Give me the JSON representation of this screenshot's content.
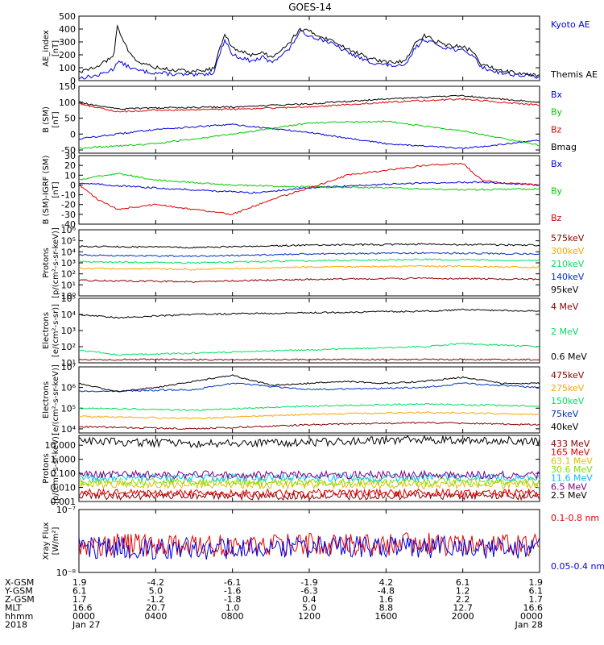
{
  "title": "GOES-14",
  "colors": {
    "black": "#000000",
    "blue": "#0000e0",
    "red": "#e00000",
    "green": "#00cc00",
    "orange": "#ffa500",
    "darkred": "#8b0000",
    "dark_blue": "#0030c0",
    "spring_green": "#00e060",
    "cyan": "#00c0ff",
    "gold": "#e0c000",
    "lime": "#80e000",
    "purple": "#800080"
  },
  "chart_data": [
    {
      "id": "ae",
      "type": "line",
      "ylabel": [
        "AE_index",
        "[nT]"
      ],
      "ylim": [
        0,
        500
      ],
      "yticks": [
        "0",
        "100",
        "200",
        "300",
        "400",
        "500"
      ],
      "ytick_values": [
        0,
        100,
        200,
        300,
        400,
        500
      ],
      "log": false,
      "series": [
        {
          "name": "Kyoto AE",
          "color": "#0000e0",
          "x": [
            0,
            1,
            1.8,
            2,
            3,
            4,
            5,
            6,
            7,
            7.6,
            8,
            9,
            9.6,
            10,
            11,
            11.5,
            12,
            13,
            14,
            15,
            16,
            17,
            17.5,
            18,
            19,
            20,
            20.5,
            21,
            22,
            23,
            24
          ],
          "y": [
            20,
            40,
            90,
            150,
            80,
            60,
            50,
            40,
            60,
            320,
            200,
            150,
            180,
            140,
            250,
            380,
            350,
            300,
            220,
            150,
            120,
            110,
            250,
            320,
            260,
            230,
            200,
            100,
            60,
            40,
            30
          ]
        },
        {
          "name": "Themis AE",
          "color": "#000000",
          "x": [
            0,
            1,
            1.8,
            2,
            2.5,
            3,
            4,
            5,
            6,
            7,
            7.6,
            8,
            9,
            9.6,
            10,
            11,
            11.5,
            12,
            13,
            14,
            15,
            16,
            17,
            17.5,
            18,
            19,
            20,
            20.5,
            21,
            22,
            23,
            24
          ],
          "y": [
            60,
            120,
            180,
            420,
            250,
            150,
            100,
            80,
            70,
            90,
            360,
            250,
            200,
            220,
            180,
            300,
            400,
            380,
            320,
            250,
            180,
            140,
            150,
            280,
            350,
            280,
            260,
            230,
            120,
            80,
            60,
            40
          ]
        }
      ]
    },
    {
      "id": "b",
      "type": "line",
      "ylabel": [
        "B (SM)",
        "[nT]"
      ],
      "ylim": [
        -60,
        150
      ],
      "yticks": [
        "-50",
        "0",
        "50",
        "100",
        "150"
      ],
      "ytick_values": [
        -50,
        0,
        50,
        100,
        150
      ],
      "log": false,
      "series": [
        {
          "name": "Bx",
          "color": "#0000e0",
          "x": [
            0,
            4,
            8,
            12,
            16,
            20,
            24
          ],
          "y": [
            -15,
            15,
            30,
            5,
            -30,
            -45,
            -20
          ]
        },
        {
          "name": "By",
          "color": "#00cc00",
          "x": [
            0,
            4,
            8,
            12,
            16,
            20,
            24
          ],
          "y": [
            -45,
            -30,
            0,
            35,
            40,
            10,
            -35
          ]
        },
        {
          "name": "Bz",
          "color": "#e00000",
          "x": [
            0,
            2,
            4,
            8,
            12,
            16,
            20,
            24
          ],
          "y": [
            95,
            70,
            75,
            78,
            85,
            100,
            110,
            90
          ]
        },
        {
          "name": "Bmag",
          "color": "#000000",
          "x": [
            0,
            2,
            4,
            8,
            12,
            16,
            20,
            24
          ],
          "y": [
            100,
            78,
            82,
            85,
            95,
            110,
            120,
            100
          ]
        }
      ]
    },
    {
      "id": "bigrf",
      "type": "line",
      "ylabel": [
        "B (SM)-IGRF (SM)",
        "[nT]"
      ],
      "ylim": [
        -40,
        30
      ],
      "yticks": [
        "-40",
        "-30",
        "-20",
        "-10",
        "0",
        "10",
        "20",
        "30"
      ],
      "ytick_values": [
        -40,
        -30,
        -20,
        -10,
        0,
        10,
        20,
        30
      ],
      "log": false,
      "series": [
        {
          "name": "Bx",
          "color": "#0000e0",
          "x": [
            0,
            3,
            6,
            9,
            12,
            15,
            18,
            21,
            24
          ],
          "y": [
            2,
            -2,
            -5,
            -8,
            -3,
            0,
            2,
            3,
            0
          ]
        },
        {
          "name": "By",
          "color": "#00cc00",
          "x": [
            0,
            2,
            4,
            8,
            12,
            16,
            20,
            24
          ],
          "y": [
            5,
            12,
            5,
            0,
            -2,
            -3,
            -5,
            -4
          ]
        },
        {
          "name": "Bz",
          "color": "#e00000",
          "x": [
            0,
            1,
            2,
            4,
            6,
            8,
            10,
            12,
            14,
            16,
            18,
            20,
            21,
            22,
            24
          ],
          "y": [
            0,
            -15,
            -25,
            -20,
            -25,
            -30,
            -15,
            -3,
            10,
            15,
            20,
            22,
            5,
            2,
            0
          ]
        }
      ]
    },
    {
      "id": "protons_lo",
      "type": "line",
      "ylabel": [
        "Protons",
        "[p/(cm²-s-sr-keV)]"
      ],
      "ylim_log": [
        0,
        6
      ],
      "yticks": [
        "10⁰",
        "10¹",
        "10²",
        "10³",
        "10⁴",
        "10⁵",
        "10⁶"
      ],
      "ytick_values": [
        0,
        1,
        2,
        3,
        4,
        5,
        6
      ],
      "log": true,
      "series": [
        {
          "name": "575keV",
          "color": "#8b0000",
          "x": [
            0,
            6,
            12,
            18,
            24
          ],
          "y": [
            1.4,
            1.3,
            1.5,
            1.6,
            1.5
          ]
        },
        {
          "name": "300keV",
          "color": "#ffa500",
          "x": [
            0,
            6,
            12,
            18,
            24
          ],
          "y": [
            2.5,
            2.4,
            2.6,
            2.7,
            2.6
          ]
        },
        {
          "name": "210keV",
          "color": "#00e060",
          "x": [
            0,
            6,
            12,
            18,
            24
          ],
          "y": [
            3.1,
            3.0,
            3.2,
            3.3,
            3.2
          ]
        },
        {
          "name": "140keV",
          "color": "#0030c0",
          "x": [
            0,
            6,
            12,
            18,
            24
          ],
          "y": [
            3.7,
            3.6,
            3.8,
            3.9,
            3.8
          ]
        },
        {
          "name": "95keV",
          "color": "#000000",
          "x": [
            0,
            6,
            12,
            18,
            24
          ],
          "y": [
            4.5,
            4.4,
            4.6,
            4.7,
            4.6
          ]
        }
      ]
    },
    {
      "id": "electrons_mev",
      "type": "line",
      "ylabel": [
        "Electrons",
        "[e/(cm²-s-sr)]"
      ],
      "ylim_log": [
        1,
        5
      ],
      "yticks": [
        "10¹",
        "10²",
        "10³",
        "10⁴",
        "10⁵"
      ],
      "ytick_values": [
        1,
        2,
        3,
        4,
        5
      ],
      "log": true,
      "series": [
        {
          "name": "4 MeV",
          "color": "#8b0000",
          "x": [
            0,
            6,
            12,
            18,
            24
          ],
          "y": [
            1.2,
            1.2,
            1.2,
            1.2,
            1.2
          ]
        },
        {
          "name": "2 MeV",
          "color": "#00e060",
          "x": [
            0,
            2,
            6,
            12,
            18,
            20,
            24
          ],
          "y": [
            1.8,
            1.5,
            1.6,
            1.8,
            2.0,
            2.2,
            2.0
          ]
        },
        {
          "name": "0.6 MeV",
          "color": "#000000",
          "x": [
            0,
            2,
            6,
            12,
            18,
            20,
            24
          ],
          "y": [
            4.0,
            3.8,
            4.0,
            4.1,
            4.2,
            4.3,
            4.2
          ]
        }
      ]
    },
    {
      "id": "electrons_kev",
      "type": "line",
      "ylabel": [
        "Electrons",
        "[e/(cm²-s-sr-keV)]"
      ],
      "ylim_log": [
        3.8,
        7
      ],
      "yticks": [
        "10⁴",
        "10⁵",
        "10⁶",
        "10⁷"
      ],
      "ytick_values": [
        4,
        5,
        6,
        7
      ],
      "log": true,
      "series": [
        {
          "name": "475keV",
          "color": "#8b0000",
          "x": [
            0,
            6,
            12,
            18,
            24
          ],
          "y": [
            4.1,
            4.0,
            4.2,
            4.3,
            4.2
          ]
        },
        {
          "name": "275keV",
          "color": "#ffa500",
          "x": [
            0,
            6,
            12,
            18,
            24
          ],
          "y": [
            4.6,
            4.5,
            4.7,
            4.8,
            4.7
          ]
        },
        {
          "name": "150keV",
          "color": "#00e060",
          "x": [
            0,
            6,
            12,
            18,
            24
          ],
          "y": [
            5.0,
            4.9,
            5.1,
            5.2,
            5.1
          ]
        },
        {
          "name": "75keV",
          "color": "#0030c0",
          "x": [
            0,
            6,
            8,
            12,
            18,
            20,
            24
          ],
          "y": [
            5.8,
            5.9,
            6.2,
            5.9,
            6.0,
            6.2,
            6.0
          ]
        },
        {
          "name": "40keV",
          "color": "#000000",
          "x": [
            0,
            2,
            4,
            8,
            10,
            12,
            14,
            16,
            18,
            20,
            22,
            24
          ],
          "y": [
            6.2,
            5.8,
            6.0,
            6.6,
            6.1,
            6.2,
            6.3,
            6.2,
            6.3,
            6.5,
            6.2,
            6.2
          ]
        }
      ]
    },
    {
      "id": "protons_hi",
      "type": "line",
      "ylabel": [
        "Protons",
        "[p/(cm²-s-sr-keV)]"
      ],
      "ylim_log": [
        -3,
        1.7
      ],
      "yticks": [
        "0.001",
        "0.010",
        "0.100",
        "1.000",
        "10.000"
      ],
      "ytick_values": [
        -3,
        -2,
        -1,
        0,
        1
      ],
      "log": true,
      "series": [
        {
          "name": "433 MeV",
          "color": "#8b0000",
          "x": [
            0,
            12,
            24
          ],
          "y": [
            -2.6,
            -2.6,
            -2.6
          ]
        },
        {
          "name": "165 MeV",
          "color": "#e00000",
          "x": [
            0,
            12,
            24
          ],
          "y": [
            -2.4,
            -2.4,
            -2.4
          ]
        },
        {
          "name": "63.1 MeV",
          "color": "#e0c000",
          "x": [
            0,
            12,
            24
          ],
          "y": [
            -1.8,
            -1.8,
            -1.8
          ]
        },
        {
          "name": "30.6 MeV",
          "color": "#80e000",
          "x": [
            0,
            12,
            24
          ],
          "y": [
            -1.6,
            -1.6,
            -1.6
          ]
        },
        {
          "name": "11.6 MeV",
          "color": "#00c0ff",
          "x": [
            0,
            12,
            24
          ],
          "y": [
            -1.3,
            -1.3,
            -1.3
          ]
        },
        {
          "name": "6.5 MeV",
          "color": "#800080",
          "x": [
            0,
            12,
            24
          ],
          "y": [
            -1.1,
            -1.1,
            -1.1
          ]
        },
        {
          "name": "2.5 MeV",
          "color": "#000000",
          "x": [
            0,
            6,
            12,
            18,
            24
          ],
          "y": [
            1.3,
            1.1,
            1.2,
            1.4,
            1.3
          ]
        }
      ]
    },
    {
      "id": "xray",
      "type": "line",
      "ylabel": [
        "Xray Flux",
        "[W/m²]"
      ],
      "ylim_log": [
        -8,
        -7
      ],
      "yticks": [
        "10⁻⁸",
        "10⁻⁷"
      ],
      "ytick_values": [
        -8,
        -7
      ],
      "log": true,
      "series": [
        {
          "name": "0.1-0.8 nm",
          "color": "#e00000",
          "x": [
            0,
            6,
            12,
            18,
            24
          ],
          "y": [
            -7.55,
            -7.58,
            -7.55,
            -7.55,
            -7.56
          ]
        },
        {
          "name": "0.05-0.4 nm",
          "color": "#0000e0",
          "x": [
            0,
            6,
            12,
            18,
            24
          ],
          "y": [
            -7.6,
            -7.62,
            -7.6,
            -7.6,
            -7.61
          ]
        }
      ]
    }
  ],
  "xaxis": {
    "ticks": [
      0,
      4,
      8,
      12,
      16,
      20,
      24
    ],
    "xlim": [
      0,
      24
    ],
    "rows": [
      {
        "label": "X-GSM",
        "values": [
          "1.9",
          "-4.2",
          "-6.1",
          "-1.9",
          "4.2",
          "6.1",
          "1.9"
        ]
      },
      {
        "label": "Y-GSM",
        "values": [
          "6.1",
          "5.0",
          "-1.6",
          "-6.3",
          "-4.8",
          "1.2",
          "6.1"
        ]
      },
      {
        "label": "Z-GSM",
        "values": [
          "1.7",
          "-1.2",
          "-1.8",
          "0.4",
          "1.6",
          "2.2",
          "1.7"
        ]
      },
      {
        "label": "MLT",
        "values": [
          "16.6",
          "20.7",
          "1.0",
          "5.0",
          "8.8",
          "12.7",
          "16.6"
        ]
      },
      {
        "label": "hhmm",
        "values": [
          "0000",
          "0400",
          "0800",
          "1200",
          "1600",
          "2000",
          "0000"
        ]
      },
      {
        "label": "2018",
        "values": [
          "Jan 27",
          "",
          "",
          "",
          "",
          "",
          "Jan 28"
        ]
      }
    ]
  }
}
